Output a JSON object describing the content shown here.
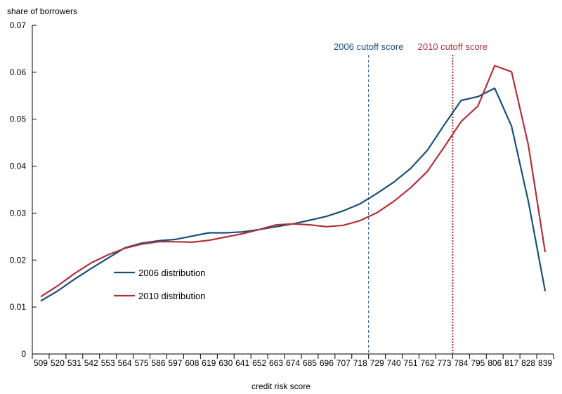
{
  "chart_data": {
    "type": "line",
    "ylabel": "share of borrowers",
    "xlabel": "credit risk score",
    "ylim": [
      0,
      0.07
    ],
    "yticks": [
      "0",
      "0.01",
      "0.02",
      "0.03",
      "0.04",
      "0.05",
      "0.06",
      "0.07"
    ],
    "yticks_values": [
      0,
      0.01,
      0.02,
      0.03,
      0.04,
      0.05,
      0.06,
      0.07
    ],
    "categories": [
      "509",
      "520",
      "531",
      "542",
      "553",
      "564",
      "575",
      "586",
      "597",
      "608",
      "619",
      "630",
      "641",
      "652",
      "663",
      "674",
      "685",
      "696",
      "707",
      "718",
      "729",
      "740",
      "751",
      "762",
      "773",
      "784",
      "795",
      "806",
      "817",
      "828",
      "839"
    ],
    "series": [
      {
        "name": "2006 distribution",
        "color": "#1a4f7a",
        "values": [
          0.0113,
          0.0134,
          0.0159,
          0.0182,
          0.0204,
          0.0226,
          0.0236,
          0.0241,
          0.0244,
          0.0251,
          0.0258,
          0.0258,
          0.026,
          0.0265,
          0.0271,
          0.0277,
          0.0285,
          0.0293,
          0.0305,
          0.032,
          0.0342,
          0.0366,
          0.0395,
          0.0434,
          0.0488,
          0.054,
          0.0548,
          0.0566,
          0.0485,
          0.0325,
          0.0134
        ]
      },
      {
        "name": "2010 distribution",
        "color": "#b0303a",
        "values": [
          0.0122,
          0.0145,
          0.0171,
          0.0194,
          0.0211,
          0.0225,
          0.0234,
          0.0239,
          0.0239,
          0.0238,
          0.0242,
          0.0249,
          0.0256,
          0.0265,
          0.0275,
          0.0277,
          0.0275,
          0.0271,
          0.0274,
          0.0284,
          0.0301,
          0.0325,
          0.0354,
          0.0389,
          0.0441,
          0.0495,
          0.0528,
          0.0614,
          0.0601,
          0.0445,
          0.0217
        ]
      }
    ],
    "annotations": [
      {
        "text": "2006 cutoff score",
        "x": 723.5,
        "color": "#1a4f7a",
        "style": "dashed"
      },
      {
        "text": "2010 cutoff score",
        "x": 778.5,
        "color": "#b0303a",
        "style": "dotted"
      }
    ],
    "legend_position": "lower-left",
    "grid": false
  }
}
